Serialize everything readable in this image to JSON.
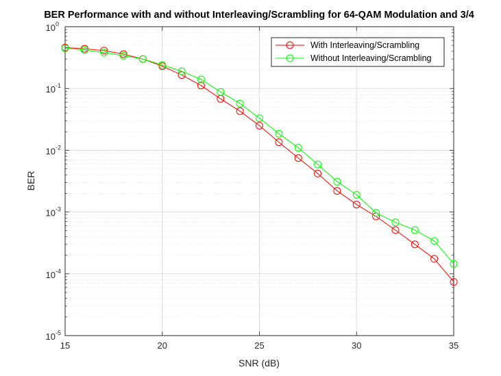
{
  "chart_data": {
    "type": "line",
    "title": "BER Performance with and without Interleaving/Scrambling for 64-QAM Modulation and 3/4",
    "xlabel": "SNR (dB)",
    "ylabel": "BER",
    "xlim": [
      15,
      35
    ],
    "ylim": [
      1e-05,
      1
    ],
    "yscale": "log",
    "grid": true,
    "minor_grid": true,
    "legend_position": "top-right",
    "x_ticks": [
      15,
      20,
      25,
      30,
      35
    ],
    "y_ticks": [
      {
        "base": "10",
        "exp": "0"
      },
      {
        "base": "10",
        "exp": "-1"
      },
      {
        "base": "10",
        "exp": "-2"
      },
      {
        "base": "10",
        "exp": "-3"
      },
      {
        "base": "10",
        "exp": "-4"
      },
      {
        "base": "10",
        "exp": "-5"
      }
    ],
    "x": [
      15,
      16,
      17,
      18,
      19,
      20,
      21,
      22,
      23,
      24,
      25,
      26,
      27,
      28,
      29,
      30,
      31,
      32,
      33,
      34,
      35
    ],
    "series": [
      {
        "name": "With Interleaving/Scrambling",
        "color": "#ff0000",
        "marker": "circle",
        "values": [
          0.46,
          0.44,
          0.41,
          0.36,
          0.3,
          0.23,
          0.165,
          0.112,
          0.068,
          0.043,
          0.025,
          0.0135,
          0.0075,
          0.0042,
          0.0022,
          0.00132,
          0.00085,
          0.00051,
          0.0003,
          0.000175,
          7.4e-05
        ]
      },
      {
        "name": "Without Interleaving/Scrambling",
        "color": "#00ff00",
        "marker": "circle",
        "values": [
          0.45,
          0.42,
          0.38,
          0.34,
          0.3,
          0.24,
          0.19,
          0.14,
          0.088,
          0.057,
          0.033,
          0.0185,
          0.011,
          0.0059,
          0.0031,
          0.0019,
          0.00097,
          0.00068,
          0.00051,
          0.00034,
          0.000145
        ]
      }
    ]
  }
}
